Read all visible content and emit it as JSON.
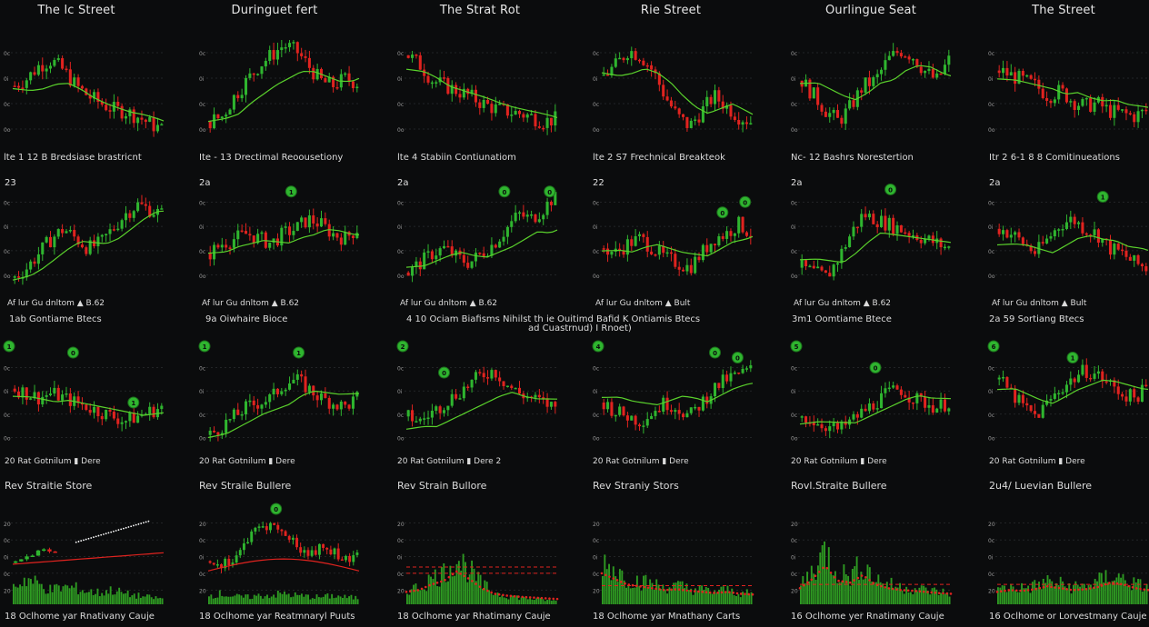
{
  "colors": {
    "background": "#0b0c0d",
    "bull": "#2fb52f",
    "bear": "#e0231f",
    "ma": "#5ad12c",
    "grid": "#3a3c40",
    "volume": "#2e9a22"
  },
  "columns": [
    "The lc Street",
    "Duringuet fert",
    "The Strat Rot",
    "Rie Street",
    "Ourlingue Seat",
    "The Street"
  ],
  "rows": [
    {
      "labels": [
        "lte 1 12 B Bredsiase brastricnt",
        "Ite - 13 Drectimal Reoousetiony",
        "lte 4 Stabiin Contiunatiom",
        "lte 2 S7 Frechnical Breakteok",
        "Nc- 12 Bashrs Norestertion",
        "Itr 2 6-1 8 8 Comitinueations"
      ],
      "left": [
        "",
        "",
        "",
        "",
        "",
        ""
      ]
    },
    {
      "labels": [
        "Af lur Gu dnltom  ▲ B.62",
        "Af lur Gu dnltom  ▲ B.62",
        "Af lur Gu dnltom  ▲ B.62",
        "Af lur Gu dnltom  ▲ Bult",
        "Af lur Gu dnltom  ▲ B.62",
        "Af lur Gu dnltom  ▲ Bult"
      ],
      "left": [
        "23",
        "2a",
        "2a",
        "22",
        "2a",
        "2a"
      ]
    },
    {
      "labels": [
        "20 Rat Gotnilum  ▮ Dere",
        "20 Rat Gotnilum  ▮ Dere",
        "20 Rat Gotnilum  ▮ Dere 2",
        "20 Rat Gotnilum  ▮ Dere",
        "20 Rat Gotnilum  ▮ Dere",
        "20 Rat Gotnilum  ▮ Dere"
      ],
      "headers": [
        "1ab Gontiame Btecs",
        "9a Oiwhaire Bioce",
        "4 10 Ociam Biafisms Nihilst th ie Ouitimd Bafid K Ontiamis Btecs",
        "",
        "3m1 Oomtiame Btece",
        "2a 59 Sortiang Btecs"
      ],
      "header2": "ad Cuastrnud) I Rnoet)",
      "badges": [
        "1",
        "1",
        "2",
        "4",
        "5",
        "6"
      ]
    },
    {
      "headers": [
        "Rev Straitie Store",
        "Rev Straile Bullere",
        "Rev Strain Bullore",
        "Rev Straniy Stors",
        "Rovl.Straite Bullere",
        "2u4/ Luevian Bullere"
      ],
      "labels": [
        "18  Oclhome yar Rnativany Cauje",
        "18  Oclhome yar Reatmnaryl Puuts",
        "18  Oclhome yar Rhatimany Cauje",
        "18  Oclhome yar Mnathany Carts",
        "16  Oclhome yer Rnatimany Cauje",
        "16  Oclhome or Lorvestmany Cauje"
      ]
    }
  ],
  "chart_data": {
    "type": "candlestick-grid",
    "panel_count": 24,
    "y_tick_labels": [
      "0c",
      "0i",
      "0c",
      "0o"
    ],
    "volume_y_tick_labels": [
      "20",
      "0c",
      "0i",
      "0c",
      "20"
    ],
    "panels": [
      {
        "row": 0,
        "col": 0,
        "trend": [
          0.55,
          0.62,
          0.75,
          0.8,
          0.7,
          0.55,
          0.45,
          0.38,
          0.32,
          0.3,
          0.25,
          0.18,
          0.12
        ],
        "ma_start": 0.5,
        "ma_end": 0.2,
        "badges": []
      },
      {
        "row": 0,
        "col": 1,
        "trend": [
          0.2,
          0.25,
          0.45,
          0.6,
          0.75,
          0.85,
          0.95,
          0.9,
          0.75,
          0.6,
          0.55,
          0.62,
          0.58
        ],
        "ma_start": 0.2,
        "ma_end": 0.65,
        "badges": []
      },
      {
        "row": 0,
        "col": 2,
        "trend": [
          0.85,
          0.75,
          0.6,
          0.55,
          0.5,
          0.45,
          0.38,
          0.33,
          0.3,
          0.28,
          0.25,
          0.2,
          0.22
        ],
        "ma_start": 0.6,
        "ma_end": 0.25,
        "badges": []
      },
      {
        "row": 0,
        "col": 3,
        "trend": [
          0.65,
          0.75,
          0.9,
          0.85,
          0.7,
          0.45,
          0.25,
          0.15,
          0.3,
          0.45,
          0.35,
          0.25,
          0.2
        ],
        "ma_start": 0.7,
        "ma_end": 0.25,
        "badges": []
      },
      {
        "row": 0,
        "col": 4,
        "trend": [
          0.6,
          0.45,
          0.3,
          0.2,
          0.35,
          0.55,
          0.6,
          0.8,
          0.9,
          0.85,
          0.7,
          0.6,
          0.8
        ],
        "ma_start": 0.55,
        "ma_end": 0.65,
        "badges": []
      },
      {
        "row": 0,
        "col": 5,
        "trend": [
          0.7,
          0.65,
          0.6,
          0.55,
          0.45,
          0.5,
          0.4,
          0.35,
          0.38,
          0.3,
          0.28,
          0.25,
          0.3
        ],
        "ma_start": 0.55,
        "ma_end": 0.4,
        "badges": []
      },
      {
        "row": 1,
        "col": 0,
        "trend": [
          0.1,
          0.2,
          0.35,
          0.5,
          0.6,
          0.5,
          0.4,
          0.45,
          0.6,
          0.75,
          0.85,
          0.8,
          0.75
        ],
        "ma_start": 0.05,
        "ma_end": 0.75,
        "badges": []
      },
      {
        "row": 1,
        "col": 1,
        "trend": [
          0.35,
          0.45,
          0.5,
          0.55,
          0.5,
          0.45,
          0.55,
          0.6,
          0.7,
          0.65,
          0.55,
          0.5,
          0.6
        ],
        "ma_start": 0.35,
        "ma_end": 0.55,
        "badges": [
          {
            "label": "1",
            "x": 0.55,
            "y": 0.05
          }
        ]
      },
      {
        "row": 1,
        "col": 2,
        "trend": [
          0.15,
          0.25,
          0.35,
          0.4,
          0.3,
          0.25,
          0.35,
          0.45,
          0.6,
          0.75,
          0.7,
          0.8,
          0.95
        ],
        "ma_start": 0.25,
        "ma_end": 0.45,
        "badges": [
          {
            "label": "0",
            "x": 0.65,
            "y": 0.05
          },
          {
            "label": "0",
            "x": 0.95,
            "y": 0.05
          }
        ]
      },
      {
        "row": 1,
        "col": 3,
        "trend": [
          0.4,
          0.35,
          0.45,
          0.5,
          0.4,
          0.3,
          0.25,
          0.2,
          0.35,
          0.5,
          0.55,
          0.65,
          0.55
        ],
        "ma_start": 0.35,
        "ma_end": 0.45,
        "badges": [
          {
            "label": "0",
            "x": 0.8,
            "y": 0.25
          },
          {
            "label": "0",
            "x": 0.95,
            "y": 0.15
          }
        ]
      },
      {
        "row": 1,
        "col": 4,
        "trend": [
          0.2,
          0.15,
          0.1,
          0.3,
          0.55,
          0.75,
          0.7,
          0.65,
          0.6,
          0.55,
          0.5,
          0.45,
          0.4
        ],
        "ma_start": 0.35,
        "ma_end": 0.45,
        "badges": [
          {
            "label": "0",
            "x": 0.6,
            "y": 0.03
          }
        ]
      },
      {
        "row": 1,
        "col": 5,
        "trend": [
          0.6,
          0.55,
          0.45,
          0.35,
          0.5,
          0.65,
          0.7,
          0.6,
          0.55,
          0.4,
          0.35,
          0.25,
          0.2
        ],
        "ma_start": 0.3,
        "ma_end": 0.45,
        "badges": [
          {
            "label": "1",
            "x": 0.7,
            "y": 0.1
          }
        ]
      },
      {
        "row": 2,
        "col": 0,
        "trend": [
          0.65,
          0.6,
          0.55,
          0.6,
          0.55,
          0.5,
          0.45,
          0.4,
          0.35,
          0.3,
          0.35,
          0.4,
          0.45
        ],
        "ma_start": 0.5,
        "ma_end": 0.4,
        "badges": [
          {
            "label": "0",
            "x": 0.4,
            "y": 0.0
          },
          {
            "label": "1",
            "x": 0.8,
            "y": 0.5
          }
        ]
      },
      {
        "row": 2,
        "col": 1,
        "trend": [
          0.15,
          0.25,
          0.35,
          0.45,
          0.5,
          0.55,
          0.7,
          0.75,
          0.65,
          0.55,
          0.5,
          0.45,
          0.55
        ],
        "ma_start": 0.1,
        "ma_end": 0.7,
        "badges": [
          {
            "label": "1",
            "x": 0.6,
            "y": 0.0
          }
        ]
      },
      {
        "row": 2,
        "col": 2,
        "trend": [
          0.35,
          0.3,
          0.4,
          0.5,
          0.6,
          0.7,
          0.8,
          0.85,
          0.7,
          0.6,
          0.55,
          0.5,
          0.45
        ],
        "ma_start": 0.1,
        "ma_end": 0.55,
        "badges": [
          {
            "label": "0",
            "x": 0.25,
            "y": 0.2
          }
        ]
      },
      {
        "row": 2,
        "col": 3,
        "trend": [
          0.5,
          0.4,
          0.35,
          0.3,
          0.4,
          0.5,
          0.45,
          0.35,
          0.5,
          0.65,
          0.75,
          0.8,
          0.85
        ],
        "ma_start": 0.6,
        "ma_end": 0.65,
        "badges": [
          {
            "label": "0",
            "x": 0.75,
            "y": 0.0
          },
          {
            "label": "0",
            "x": 0.9,
            "y": 0.05
          }
        ]
      },
      {
        "row": 2,
        "col": 4,
        "trend": [
          0.35,
          0.3,
          0.25,
          0.2,
          0.3,
          0.4,
          0.5,
          0.6,
          0.65,
          0.55,
          0.5,
          0.45,
          0.5
        ],
        "ma_start": 0.2,
        "ma_end": 0.6,
        "badges": [
          {
            "label": "0",
            "x": 0.5,
            "y": 0.15
          }
        ]
      },
      {
        "row": 2,
        "col": 5,
        "trend": [
          0.75,
          0.6,
          0.45,
          0.35,
          0.5,
          0.65,
          0.75,
          0.85,
          0.8,
          0.7,
          0.6,
          0.55,
          0.65
        ],
        "ma_start": 0.55,
        "ma_end": 0.7,
        "badges": [
          {
            "label": "1",
            "x": 0.5,
            "y": 0.05
          }
        ]
      },
      {
        "row": 3,
        "col": 0,
        "kind": "volume",
        "volume": [
          0.3,
          0.45,
          0.35,
          0.25,
          0.3,
          0.28,
          0.22,
          0.2,
          0.25,
          0.18,
          0.15,
          0.12,
          0.1
        ],
        "candles_left": true,
        "ma_start": 0.25,
        "ma_end": 0.45,
        "dots_from": 0.42,
        "dots_to": 0.9,
        "badges": []
      },
      {
        "row": 3,
        "col": 1,
        "kind": "mixed",
        "volume": [
          0.25,
          0.3,
          0.22,
          0.2,
          0.24,
          0.26,
          0.3,
          0.25,
          0.22,
          0.2,
          0.24,
          0.2,
          0.18
        ],
        "badges": [
          {
            "label": "0",
            "x": 0.45,
            "y": 0.0
          }
        ]
      },
      {
        "row": 3,
        "col": 2,
        "kind": "volume",
        "volume": [
          0.25,
          0.3,
          0.45,
          0.55,
          0.8,
          0.6,
          0.35,
          0.2,
          0.15,
          0.12,
          0.1,
          0.08,
          0.06
        ],
        "dashed": [
          0.6,
          0.5
        ],
        "badges": []
      },
      {
        "row": 3,
        "col": 3,
        "kind": "volume",
        "volume": [
          0.75,
          0.6,
          0.45,
          0.4,
          0.35,
          0.3,
          0.32,
          0.28,
          0.25,
          0.22,
          0.25,
          0.2,
          0.18
        ],
        "dashed": [
          0.3
        ],
        "badges": []
      },
      {
        "row": 3,
        "col": 4,
        "kind": "volume",
        "volume": [
          0.35,
          0.6,
          0.95,
          0.55,
          0.5,
          0.7,
          0.45,
          0.35,
          0.3,
          0.28,
          0.25,
          0.22,
          0.2
        ],
        "dashed": [
          0.32
        ],
        "badges": []
      },
      {
        "row": 3,
        "col": 5,
        "kind": "volume",
        "volume": [
          0.25,
          0.3,
          0.28,
          0.32,
          0.4,
          0.35,
          0.3,
          0.32,
          0.38,
          0.5,
          0.45,
          0.35,
          0.3
        ],
        "dashed": [
          0.32
        ],
        "badges": []
      }
    ]
  }
}
